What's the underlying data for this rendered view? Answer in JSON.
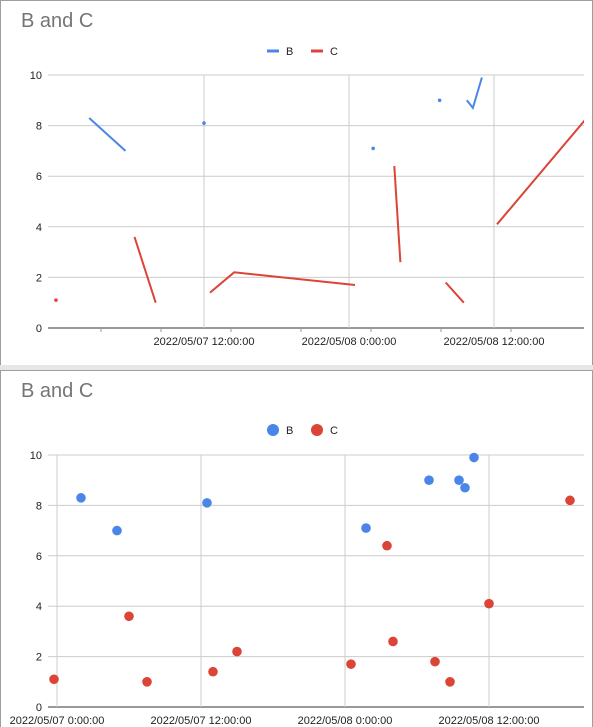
{
  "charts": [
    {
      "title": "B and C",
      "legend": [
        "B",
        "C"
      ]
    },
    {
      "title": "B and C",
      "legend": [
        "B",
        "C"
      ]
    }
  ],
  "colors": {
    "B": "#4a86e8",
    "C": "#db4437",
    "grid": "#cccccc",
    "text": "#222222"
  },
  "chart_data": [
    {
      "type": "line",
      "title": "B and C",
      "xlabel": "",
      "ylabel": "",
      "ylim": [
        0,
        10
      ],
      "yticks": [
        0,
        2,
        4,
        6,
        8,
        10
      ],
      "xtick_labels": [
        "2022/05/07 12:00:00",
        "2022/05/08 0:00:00",
        "2022/05/08 12:00:00"
      ],
      "legend_position": "top",
      "grid": true,
      "series": [
        {
          "name": "B",
          "segments": [
            [
              [
                "2022/05/07 02:30",
                8.3
              ],
              [
                "2022/05/07 05:30",
                7.0
              ]
            ],
            [
              [
                "2022/05/07 12:00",
                8.1
              ]
            ],
            [
              [
                "2022/05/08 02:00",
                7.1
              ]
            ],
            [
              [
                "2022/05/08 07:30",
                9.0
              ]
            ],
            [
              [
                "2022/05/08 09:45",
                9.0
              ],
              [
                "2022/05/08 10:15",
                8.7
              ],
              [
                "2022/05/08 11:00",
                9.9
              ]
            ]
          ]
        },
        {
          "name": "C",
          "segments": [
            [
              [
                "2022/05/06 23:45",
                1.1
              ]
            ],
            [
              [
                "2022/05/07 06:15",
                3.6
              ],
              [
                "2022/05/07 08:00",
                1.0
              ]
            ],
            [
              [
                "2022/05/07 12:30",
                1.4
              ],
              [
                "2022/05/07 14:30",
                2.2
              ],
              [
                "2022/05/08 00:30",
                1.7
              ]
            ],
            [
              [
                "2022/05/08 03:45",
                6.4
              ],
              [
                "2022/05/08 04:15",
                2.6
              ]
            ],
            [
              [
                "2022/05/08 08:00",
                1.8
              ],
              [
                "2022/05/08 09:30",
                1.0
              ]
            ],
            [
              [
                "2022/05/08 12:15",
                4.1
              ],
              [
                "2022/05/08 19:30",
                8.2
              ]
            ]
          ]
        }
      ]
    },
    {
      "type": "scatter",
      "title": "B and C",
      "xlabel": "",
      "ylabel": "",
      "ylim": [
        0,
        10
      ],
      "yticks": [
        0,
        2,
        4,
        6,
        8,
        10
      ],
      "xtick_labels": [
        "2022/05/07 0:00:00",
        "2022/05/07 12:00:00",
        "2022/05/08 0:00:00",
        "2022/05/08 12:00:00"
      ],
      "legend_position": "top",
      "grid": true,
      "series": [
        {
          "name": "B",
          "points": [
            [
              "2022/05/07 02:00",
              8.3
            ],
            [
              "2022/05/07 05:00",
              7.0
            ],
            [
              "2022/05/07 12:30",
              8.1
            ],
            [
              "2022/05/08 01:45",
              7.1
            ],
            [
              "2022/05/08 07:00",
              9.0
            ],
            [
              "2022/05/08 09:30",
              9.0
            ],
            [
              "2022/05/08 10:00",
              8.7
            ],
            [
              "2022/05/08 10:45",
              9.9
            ]
          ]
        },
        {
          "name": "C",
          "points": [
            [
              "2022/05/06 23:45",
              1.1
            ],
            [
              "2022/05/07 06:00",
              3.6
            ],
            [
              "2022/05/07 07:30",
              1.0
            ],
            [
              "2022/05/07 13:00",
              1.4
            ],
            [
              "2022/05/07 15:00",
              2.2
            ],
            [
              "2022/05/08 00:30",
              1.7
            ],
            [
              "2022/05/08 03:30",
              6.4
            ],
            [
              "2022/05/08 04:00",
              2.6
            ],
            [
              "2022/05/08 07:30",
              1.8
            ],
            [
              "2022/05/08 08:45",
              1.0
            ],
            [
              "2022/05/08 12:00",
              4.1
            ],
            [
              "2022/05/08 18:45",
              8.2
            ]
          ]
        }
      ]
    }
  ]
}
